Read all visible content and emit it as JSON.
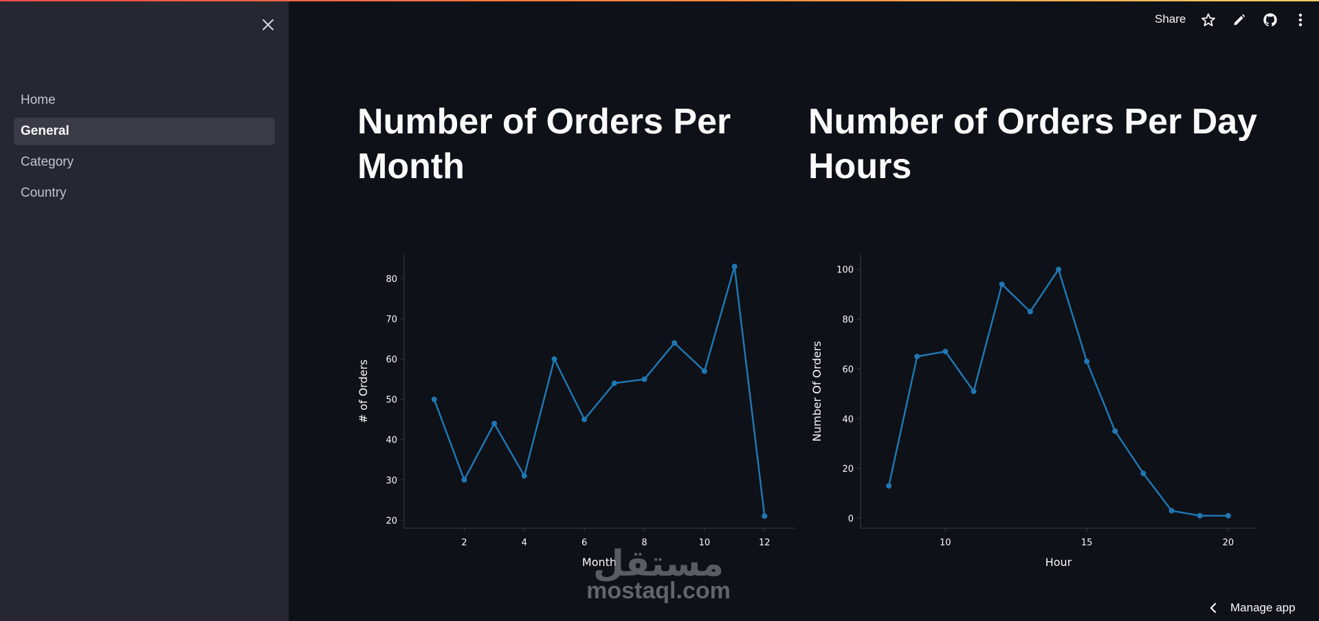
{
  "sidebar": {
    "items": [
      {
        "label": "Home",
        "active": false
      },
      {
        "label": "General",
        "active": true
      },
      {
        "label": "Category",
        "active": false
      },
      {
        "label": "Country",
        "active": false
      }
    ]
  },
  "header": {
    "share_label": "Share",
    "icons": [
      "star-icon",
      "pencil-icon",
      "github-icon",
      "kebab-menu-icon"
    ]
  },
  "main": {
    "left_title": "Number of Orders Per Month",
    "right_title": "Number of Orders Per Day Hours"
  },
  "chart_data": [
    {
      "type": "line",
      "title": "",
      "xlabel": "Month",
      "ylabel": "# of Orders",
      "x": [
        1,
        2,
        3,
        4,
        5,
        6,
        7,
        8,
        9,
        10,
        11,
        12
      ],
      "y": [
        50,
        30,
        44,
        31,
        60,
        45,
        54,
        55,
        64,
        57,
        83,
        21
      ],
      "xlim": [
        0,
        13
      ],
      "ylim": [
        18,
        86
      ],
      "xticks": [
        2,
        4,
        6,
        8,
        10,
        12
      ],
      "yticks": [
        20,
        30,
        40,
        50,
        60,
        70,
        80
      ],
      "color": "#1f77b4",
      "grid": false
    },
    {
      "type": "line",
      "title": "",
      "xlabel": "Hour",
      "ylabel": "Number Of Orders",
      "x": [
        8,
        9,
        10,
        11,
        12,
        13,
        14,
        15,
        16,
        17,
        18,
        19,
        20
      ],
      "y": [
        13,
        65,
        67,
        51,
        94,
        83,
        100,
        63,
        35,
        18,
        3,
        1,
        1
      ],
      "xlim": [
        7,
        21
      ],
      "ylim": [
        -4,
        106
      ],
      "xticks": [
        10,
        15,
        20
      ],
      "yticks": [
        0,
        20,
        40,
        60,
        80,
        100
      ],
      "color": "#1f77b4",
      "grid": false
    }
  ],
  "watermark": {
    "logo_text": "مستقل",
    "site_text": "mostaql.com"
  },
  "footer": {
    "manage_label": "Manage app"
  }
}
